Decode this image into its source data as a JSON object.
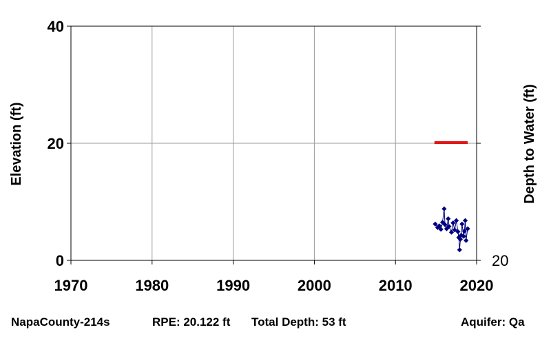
{
  "chart_data": {
    "type": "scatter",
    "xlabel": "",
    "ylabel": "Elevation (ft)",
    "y2label": "Depth to Water (ft)",
    "xlim": [
      1970,
      2020
    ],
    "ylim": [
      0,
      40
    ],
    "x_ticks": [
      1970,
      1980,
      1990,
      2000,
      2010,
      2020
    ],
    "y_ticks": [
      0,
      20,
      40
    ],
    "y2_ticks": [
      {
        "label": "20",
        "at_elevation": 0.122
      }
    ],
    "grid": true,
    "rpe_line": {
      "elevation": 20.122,
      "x": [
        2014.8,
        2018.9
      ],
      "color": "#e01818"
    },
    "series": [
      {
        "color": "#00007f",
        "points": [
          {
            "x": 2014.9,
            "y": 6.2
          },
          {
            "x": 2015.2,
            "y": 5.6
          },
          {
            "x": 2015.4,
            "y": 5.9
          },
          {
            "x": 2015.6,
            "y": 5.3
          },
          {
            "x": 2015.8,
            "y": 6.5
          },
          {
            "x": 2016.0,
            "y": 8.8
          },
          {
            "x": 2016.1,
            "y": 6.1
          },
          {
            "x": 2016.3,
            "y": 5.4
          },
          {
            "x": 2016.5,
            "y": 7.1
          },
          {
            "x": 2016.6,
            "y": 5.8
          },
          {
            "x": 2016.9,
            "y": 4.8
          },
          {
            "x": 2017.1,
            "y": 6.4
          },
          {
            "x": 2017.3,
            "y": 5.2
          },
          {
            "x": 2017.5,
            "y": 6.8
          },
          {
            "x": 2017.7,
            "y": 4.9
          },
          {
            "x": 2017.8,
            "y": 3.9
          },
          {
            "x": 2017.9,
            "y": 1.8
          },
          {
            "x": 2018.0,
            "y": 3.6
          },
          {
            "x": 2018.1,
            "y": 4.3
          },
          {
            "x": 2018.2,
            "y": 6.2
          },
          {
            "x": 2018.4,
            "y": 4.1
          },
          {
            "x": 2018.5,
            "y": 5.0
          },
          {
            "x": 2018.6,
            "y": 6.8
          },
          {
            "x": 2018.7,
            "y": 3.4
          },
          {
            "x": 2018.9,
            "y": 5.4
          }
        ]
      }
    ]
  },
  "footer": {
    "well_id": "NapaCounty-214s",
    "rpe": "RPE: 20.122 ft",
    "total_depth": "Total Depth: 53 ft",
    "aquifer": "Aquifer: Qa"
  }
}
